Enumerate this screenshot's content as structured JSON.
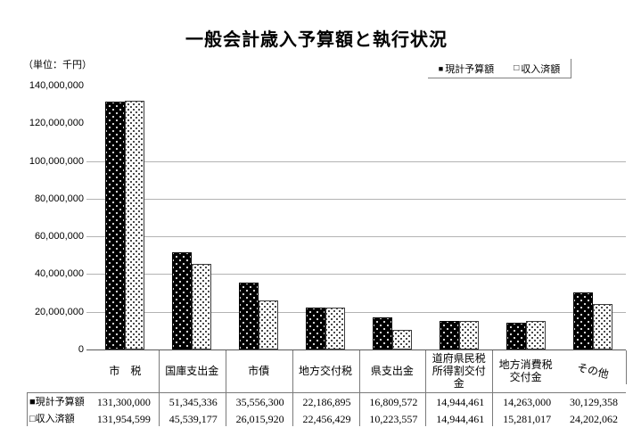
{
  "title": "一般会計歳入予算額と執行状況",
  "unit_label": "（単位：千円）",
  "legend": {
    "marker1": "■",
    "series1": "現計予算額",
    "marker2": "□",
    "series2": "収入済額"
  },
  "colors": {
    "bar_series1": "#000000",
    "bar_series2": "#ffffff",
    "gridline": "#b3b3b3",
    "axis_line": "#595959",
    "table_line": "#7a7a7a"
  },
  "chart_data": {
    "type": "bar",
    "title": "一般会計歳入予算額と執行状況",
    "unit": "千円",
    "categories": [
      "市税",
      "国庫支出金",
      "市債",
      "地方交付税",
      "県支出金",
      "道府県民税所得割交付金",
      "地方消費税交付金",
      "その他"
    ],
    "category_display": [
      "市　税",
      "国庫支出金",
      "市債",
      "地方交付税",
      "県支出金",
      "道府県民税\n所得割交付\n金",
      "地方消費税\n交付金",
      "その他"
    ],
    "series": [
      {
        "name": "現計予算額",
        "marker": "filled-square",
        "values": [
          131300000,
          51345336,
          35556300,
          22186895,
          16809572,
          14944461,
          14263000,
          30129358
        ]
      },
      {
        "name": "収入済額",
        "marker": "open-square",
        "values": [
          131954599,
          45539177,
          26015920,
          22456429,
          10223557,
          14944461,
          15281017,
          24202062
        ]
      }
    ],
    "y_axis": {
      "min": 0,
      "max": 140000000,
      "step": 20000000,
      "tick_labels": [
        "0",
        "20,000,000",
        "40,000,000",
        "60,000,000",
        "80,000,000",
        "100,000,000",
        "120,000,000",
        "140,000,000"
      ],
      "gridlines_at": [
        20000000,
        40000000,
        60000000,
        80000000,
        100000000
      ]
    },
    "legend_position": "top-right",
    "grid": true,
    "data_table": {
      "row_labels": [
        "■現計予算額",
        "□収入済額"
      ],
      "rows": [
        [
          "131,300,000",
          "51,345,336",
          "35,556,300",
          "22,186,895",
          "16,809,572",
          "14,944,461",
          "14,263,000",
          "30,129,358"
        ],
        [
          "131,954,599",
          "45,539,177",
          "26,015,920",
          "22,456,429",
          "10,223,557",
          "14,944,461",
          "15,281,017",
          "24,202,062"
        ]
      ]
    }
  }
}
